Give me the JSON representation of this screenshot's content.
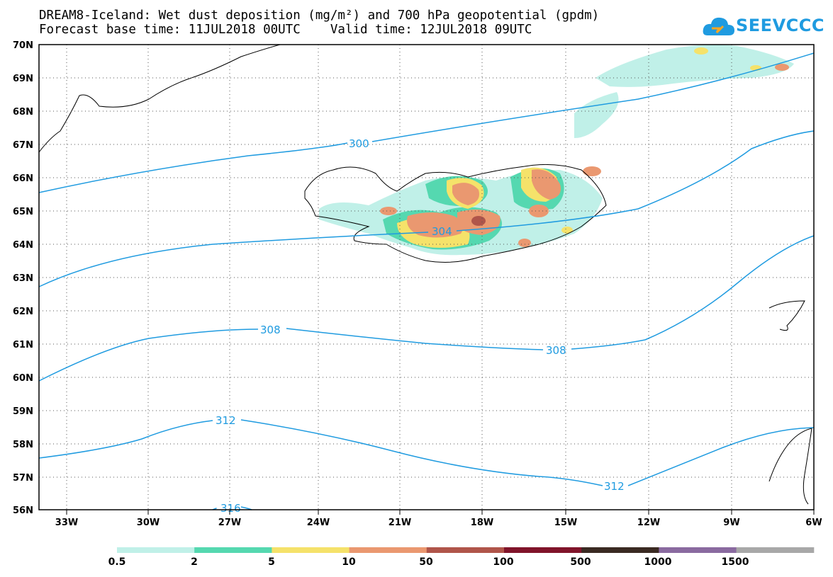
{
  "header": {
    "title_line1": "DREAM8-Iceland: Wet dust deposition (mg/m²) and 700 hPa geopotential (gpdm)",
    "title_line2": "Forecast base time: 11JUL2018 00UTC    Valid time: 12JUL2018 09UTC"
  },
  "logo": {
    "text": "SEEVCCC",
    "icon": "cloud-logo-icon",
    "color": "#1f9be0"
  },
  "map": {
    "lon_range": [
      -34.5,
      -6
    ],
    "lat_range": [
      56,
      70
    ],
    "x_ticks": [
      "33W",
      "30W",
      "27W",
      "24W",
      "21W",
      "18W",
      "15W",
      "12W",
      "9W",
      "6W"
    ],
    "y_ticks": [
      "70N",
      "69N",
      "68N",
      "67N",
      "66N",
      "65N",
      "64N",
      "63N",
      "62N",
      "61N",
      "60N",
      "59N",
      "58N",
      "57N",
      "56N"
    ],
    "grid": "dotted"
  },
  "contours": [
    {
      "value": "300"
    },
    {
      "value": "304"
    },
    {
      "value": "308"
    },
    {
      "value": "308"
    },
    {
      "value": "312"
    },
    {
      "value": "312"
    },
    {
      "value": "316"
    }
  ],
  "legend": {
    "labels": [
      "0.5",
      "2",
      "5",
      "10",
      "50",
      "100",
      "500",
      "1000",
      "1500"
    ],
    "colors": [
      "#c0f0e8",
      "#55d8b0",
      "#f5e26a",
      "#ea9870",
      "#b0554a",
      "#80142a",
      "#3a2a22",
      "#8a6aa0",
      "#a8a8a8"
    ]
  }
}
